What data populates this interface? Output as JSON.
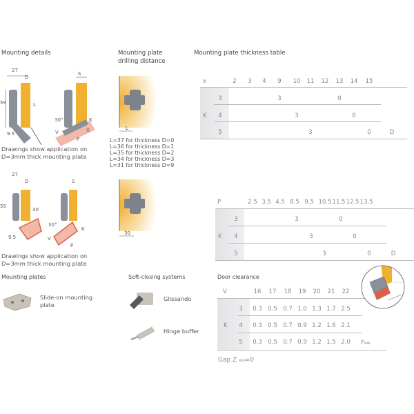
{
  "sections": {
    "mounting_details": "Mounting details",
    "drilling_distance": [
      "Mounting plate",
      "drilling distance"
    ],
    "thickness_table": "Mounting plate thickness table",
    "mounting_plates": "Mounting plates",
    "soft_closing": "Soft-closing systems",
    "door_clearance": "Door clearance"
  },
  "drawing1": {
    "dims": [
      "27",
      "D",
      "59",
      "L",
      "9.5",
      "S",
      "30°",
      "K",
      "X",
      "V",
      "P"
    ],
    "caption": [
      "Drawings show application on",
      "D=3mm thick mounting plate"
    ]
  },
  "drawing2": {
    "dims": [
      "27",
      "D",
      "55",
      "30",
      "9.5",
      "S",
      "30°",
      "K",
      "V",
      "P"
    ],
    "caption": [
      "Drawings show application on",
      "D=3mm thick mounting plate"
    ]
  },
  "drilling": {
    "dim1": "L",
    "lines": [
      "L=37 for thickness D=0",
      "L=36 for thickness D=1",
      "L=35 for thickness D=2",
      "L=34 for thickness D=3",
      "L=31 for thickness D=9"
    ],
    "dim2": "30"
  },
  "table1": {
    "header_label": "x",
    "columns": [
      "2",
      "3",
      "4",
      "9",
      "10",
      "11",
      "12",
      "13",
      "14",
      "15"
    ],
    "row_group": "K",
    "rows": [
      {
        "k": "3",
        "a": "3",
        "b": "0"
      },
      {
        "k": "4",
        "a": "3",
        "b": "0"
      },
      {
        "k": "5",
        "a": "3",
        "b": "0"
      }
    ],
    "axis_label": "D"
  },
  "table2": {
    "header_label": "P",
    "columns": [
      "2.5",
      "3.5",
      "4.5",
      "8.5",
      "9.5",
      "10.5",
      "11.5",
      "12.5",
      "13.5"
    ],
    "row_group": "K",
    "rows": [
      {
        "k": "3",
        "a": "3",
        "b": "0"
      },
      {
        "k": "4",
        "a": "3",
        "b": "0"
      },
      {
        "k": "5",
        "a": "3",
        "b": "0"
      }
    ],
    "axis_label": "D"
  },
  "table3": {
    "header_label": "V",
    "columns": [
      "16",
      "17",
      "18",
      "19",
      "20",
      "21",
      "22"
    ],
    "row_group": "K",
    "rows": [
      {
        "k": "3",
        "values": [
          "0.3",
          "0.5",
          "0.7",
          "1.0",
          "1.3",
          "1.7",
          "2.5"
        ]
      },
      {
        "k": "4",
        "values": [
          "0.3",
          "0.5",
          "0.7",
          "0.9",
          "1.2",
          "1.6",
          "2.1"
        ]
      },
      {
        "k": "5",
        "values": [
          "0.3",
          "0.5",
          "0.7",
          "0.9",
          "1.2",
          "1.5",
          "2.0"
        ]
      }
    ],
    "axis_label": "F",
    "axis_sub": "MIN",
    "gap": {
      "label": "Gap Z",
      "sub": "MIN",
      "value": "=0"
    }
  },
  "products": {
    "plate": [
      "Slide-on mounting",
      "plate"
    ],
    "glissando": "Glissando",
    "buffer": "Hinge buffer"
  },
  "colors": {
    "wood": "#f0b030",
    "hinge": "#8a9099",
    "door_edge": "#d9614a",
    "door": "#f2b8a8"
  }
}
